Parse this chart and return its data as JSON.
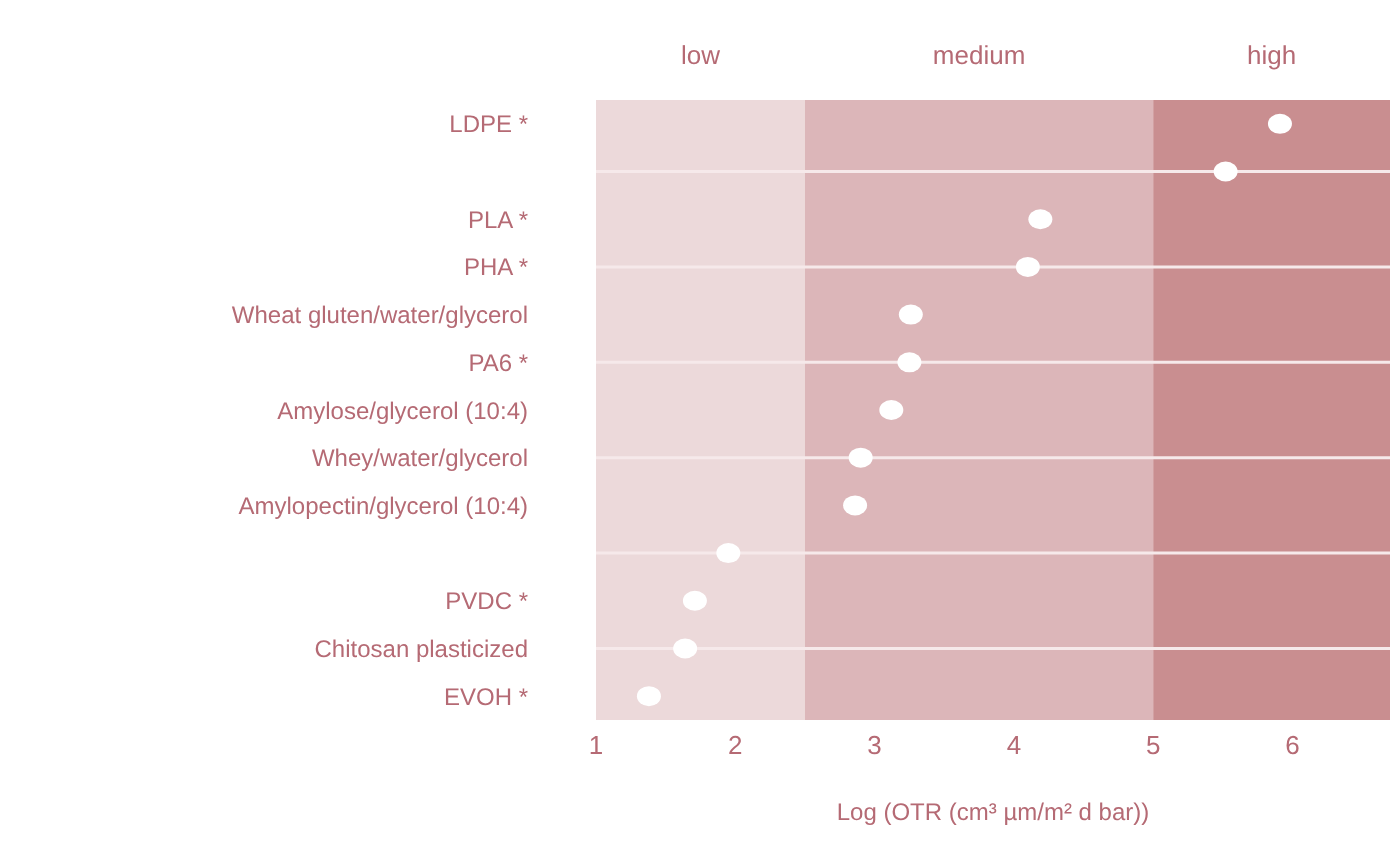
{
  "chart_data": {
    "type": "scatter",
    "orientation": "horizontal",
    "xlabel": "Log (OTR (cm³ µm/m² d bar))",
    "categories": [
      "LDPE *",
      null,
      "PLA *",
      "PHA *",
      "Wheat gluten/water/glycerol",
      "PA6 *",
      "Amylose/glycerol (10:4)",
      "Whey/water/glycerol",
      "Amylopectin/glycerol (10:4)",
      null,
      "PVDC *",
      "Chitosan plasticized",
      "EVOH *"
    ],
    "series": [
      {
        "color": "#ffffff",
        "values": [
          5.91,
          5.52,
          4.19,
          4.1,
          3.26,
          3.25,
          3.12,
          2.9,
          2.86,
          1.95,
          1.71,
          1.64,
          1.38
        ]
      }
    ],
    "xlim": [
      1,
      6.7
    ],
    "xticks": [
      1,
      2,
      3,
      4,
      5,
      6
    ],
    "marker": "circle",
    "grid": "y",
    "bands": [
      {
        "axis": "x",
        "from": 1,
        "to": 2.5,
        "label": "low",
        "color": "#ecd9da"
      },
      {
        "axis": "x",
        "from": 2.5,
        "to": 5,
        "label": "medium",
        "color": "#dcb6b9"
      },
      {
        "axis": "x",
        "from": 5,
        "to": 6.7,
        "label": "high",
        "color": "#c98e90"
      }
    ]
  }
}
